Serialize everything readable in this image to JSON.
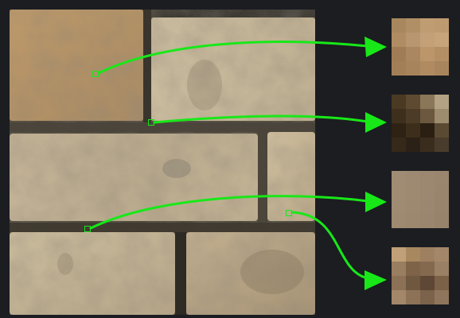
{
  "photo": {
    "subject": "sandstone-brick-wall",
    "colors": {
      "mortar": "#4a443b",
      "brick_light": "#c9b99a",
      "brick_dark": "#8f7d62",
      "brick_warm": "#b99a6c"
    }
  },
  "arrow_color": "#18e818",
  "samples": [
    {
      "id": "sample-1",
      "colors": [
        "#a8865e",
        "#b08f66",
        "#c09c72",
        "#bd9a70",
        "#b08c62",
        "#b89670",
        "#c4a078",
        "#c8a47a",
        "#9f7c55",
        "#aa8760",
        "#bc966a",
        "#b48f66",
        "#a37f58",
        "#a8845c",
        "#b08b62",
        "#a9855e"
      ]
    },
    {
      "id": "sample-2",
      "colors": [
        "#4a3a24",
        "#5e4a30",
        "#8a7658",
        "#b3a283",
        "#3e2f1d",
        "#4c3b26",
        "#6b583e",
        "#9e8c6e",
        "#2e2214",
        "#3d2e1c",
        "#2a1f12",
        "#5a4a33",
        "#36291a",
        "#2c2116",
        "#3b2d1e",
        "#4a3c2c"
      ]
    },
    {
      "id": "sample-3",
      "colors": [
        "#a08c74",
        "#9e8a72",
        "#9c8870",
        "#9a866e",
        "#a08b73",
        "#9e8a71",
        "#9c8870",
        "#99856d",
        "#9f8a72",
        "#9d8970",
        "#9b876f",
        "#98846c",
        "#9e8971",
        "#9c886f",
        "#9a866e",
        "#97836b"
      ]
    },
    {
      "id": "sample-4",
      "colors": [
        "#c0a078",
        "#a8885f",
        "#9e8060",
        "#a4876a",
        "#9a7e60",
        "#7e6349",
        "#84694f",
        "#9a8064",
        "#8c7157",
        "#6f5740",
        "#5e4734",
        "#7a6148",
        "#a38769",
        "#8d7258",
        "#7b624a",
        "#8e755b"
      ]
    }
  ]
}
